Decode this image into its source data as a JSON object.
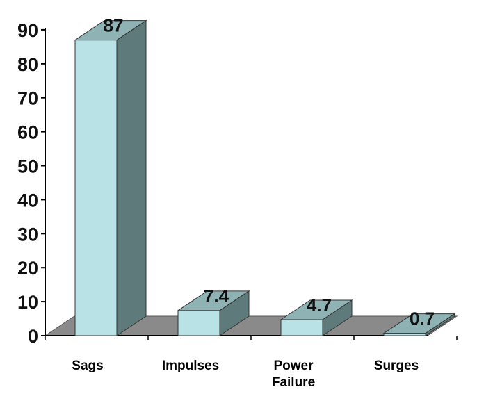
{
  "chart_data": {
    "type": "bar",
    "style": "3d-column",
    "categories": [
      "Sags",
      "Impulses",
      "Power Failure",
      "Surges"
    ],
    "category_lines": [
      [
        "Sags"
      ],
      [
        "Impulses"
      ],
      [
        "Power",
        "Failure"
      ],
      [
        "Surges"
      ]
    ],
    "values": [
      87,
      7.4,
      4.7,
      0.7
    ],
    "data_labels": [
      "87",
      "7.4",
      "4.7",
      "0.7"
    ],
    "ylim": [
      0,
      90
    ],
    "yticks": [
      "0",
      "10",
      "20",
      "30",
      "40",
      "50",
      "60",
      "70",
      "80",
      "90"
    ],
    "grid": false,
    "legend": "none",
    "colors": {
      "bar_front": "#b8e2e6",
      "bar_top": "#8fb3b5",
      "bar_side": "#5f7a7b",
      "floor": "#8a8a8a",
      "axis": "#000000"
    }
  }
}
